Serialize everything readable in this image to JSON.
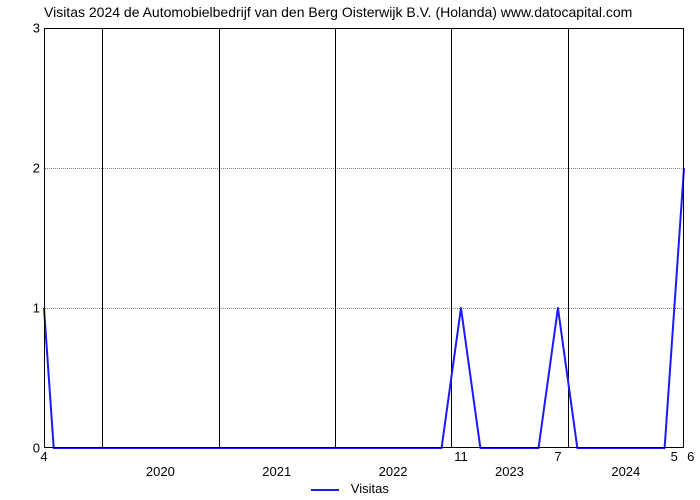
{
  "chart": {
    "type": "line",
    "title": "Visitas 2024 de Automobielbedrijf van den Berg Oisterwijk B.V. (Holanda) www.datocapital.com",
    "title_fontsize": 14,
    "background_color": "#ffffff",
    "plot_border_color": "#000000",
    "grid_color": "#7f7f7f",
    "grid_dash": "1,3",
    "line_color": "#1a1aff",
    "line_width": 2,
    "xlim": [
      0,
      66
    ],
    "ylim": [
      0,
      3
    ],
    "ytick_positions": [
      0,
      1,
      2,
      3
    ],
    "ytick_labels": [
      "0",
      "1",
      "2",
      "3"
    ],
    "x_gridlines_at": [
      6,
      18,
      30,
      42,
      54,
      66
    ],
    "x_year_ticks": [
      {
        "x": 12,
        "label": "2020"
      },
      {
        "x": 24,
        "label": "2021"
      },
      {
        "x": 36,
        "label": "2022"
      },
      {
        "x": 48,
        "label": "2023"
      },
      {
        "x": 60,
        "label": "2024"
      }
    ],
    "value_labels": [
      {
        "x": 0,
        "text": "4"
      },
      {
        "x": 43,
        "text": "11"
      },
      {
        "x": 53,
        "text": "7"
      },
      {
        "x": 65,
        "text": "5"
      },
      {
        "x": 66.7,
        "text": "6"
      }
    ],
    "series": {
      "name": "Visitas",
      "points": [
        {
          "x": 0,
          "y": 1.0
        },
        {
          "x": 1,
          "y": 0.0
        },
        {
          "x": 41,
          "y": 0.0
        },
        {
          "x": 43,
          "y": 1.0
        },
        {
          "x": 45,
          "y": 0.0
        },
        {
          "x": 51,
          "y": 0.0
        },
        {
          "x": 53,
          "y": 1.0
        },
        {
          "x": 55,
          "y": 0.0
        },
        {
          "x": 64,
          "y": 0.0
        },
        {
          "x": 66,
          "y": 2.0
        }
      ]
    },
    "legend": {
      "label": "Visitas",
      "swatch_color": "#1a1aff"
    },
    "label_fontsize": 13
  }
}
